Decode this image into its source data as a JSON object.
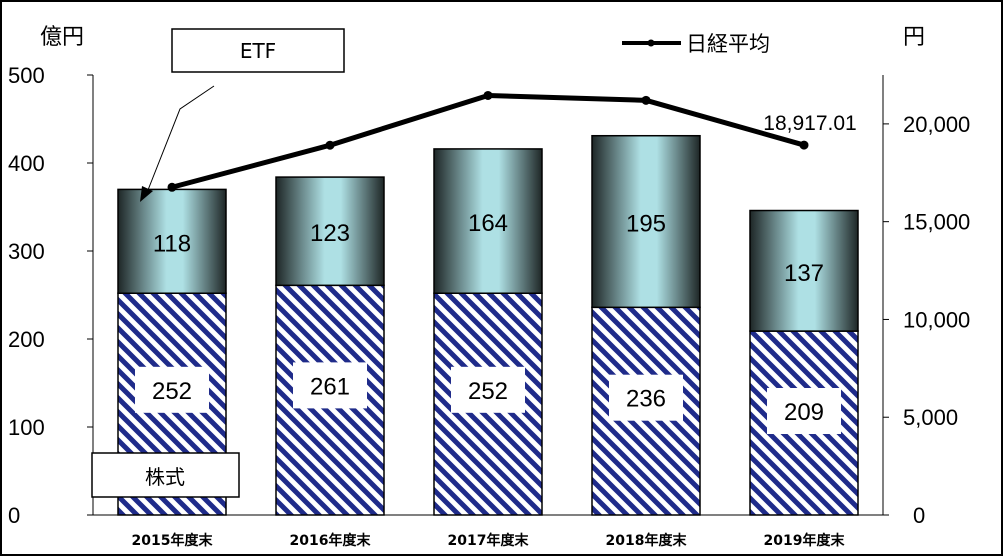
{
  "chart_data": {
    "type": "bar",
    "stacked": true,
    "categories": [
      "2015年度末",
      "2016年度末",
      "2017年度末",
      "2018年度末",
      "2019年度末"
    ],
    "series": [
      {
        "name": "株式",
        "values": [
          252,
          261,
          252,
          236,
          209
        ],
        "axis": "left"
      },
      {
        "name": "ETF",
        "values": [
          118,
          123,
          164,
          195,
          137
        ],
        "axis": "left"
      }
    ],
    "line_series": {
      "name": "日経平均",
      "values": [
        16759,
        18909,
        21454,
        21205,
        18917.01
      ],
      "axis": "right"
    },
    "left_axis": {
      "unit": "億円",
      "ylim": [
        0,
        500
      ],
      "ticks": [
        "0",
        "100",
        "200",
        "300",
        "400",
        "500"
      ]
    },
    "right_axis": {
      "unit": "円",
      "ylim": [
        0,
        22500
      ],
      "ticks": [
        "0",
        "5,000",
        "10,000",
        "15,000",
        "20,000"
      ]
    },
    "annotation": "18,917.01",
    "callouts": {
      "etf": "ETF",
      "stock": "株式"
    },
    "legend": {
      "label": "日経平均",
      "position": "top"
    },
    "colors": {
      "stock_pattern": "#1f2b8a",
      "etf_light": "#aee0e4",
      "etf_dark": "#1e2626",
      "line": "#000000"
    }
  }
}
